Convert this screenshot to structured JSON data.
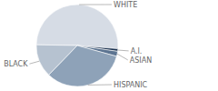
{
  "chart_data": {
    "type": "pie",
    "categories": [
      "WHITE",
      "A.I.",
      "ASIAN",
      "HISPANIC",
      "BLACK"
    ],
    "values": [
      51,
      1,
      2,
      33,
      13
    ],
    "colors": [
      "#d6dce5",
      "#1f3553",
      "#5c7491",
      "#8ea2b8",
      "#b6c2d0"
    ]
  }
}
